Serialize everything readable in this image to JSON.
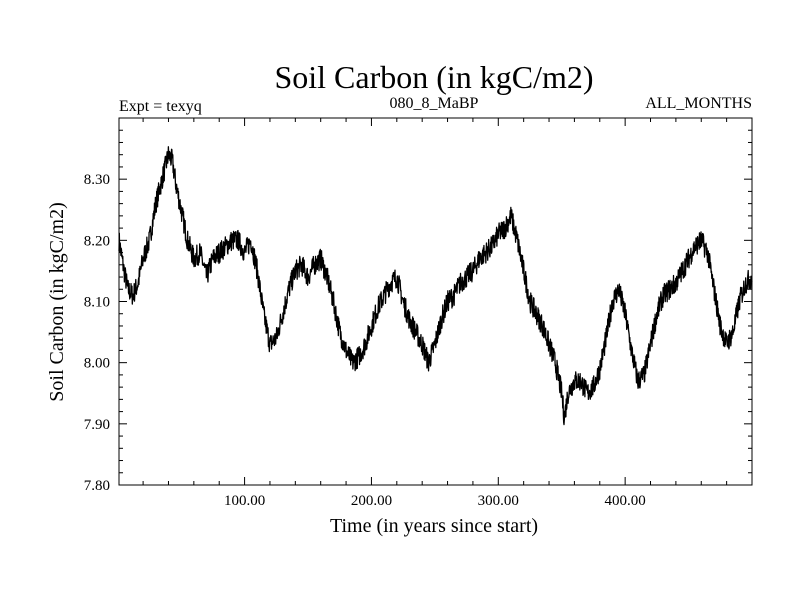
{
  "chart_data": {
    "type": "line",
    "title": "Soil Carbon (in kgC/m2)",
    "subtitle_left": "Expt = texyq",
    "subtitle_center": "080_8_MaBP",
    "subtitle_right": "ALL_MONTHS",
    "xlabel": "Time (in years since start)",
    "ylabel": "Soil Carbon (in kgC/m2)",
    "xlim": [
      1,
      500
    ],
    "ylim": [
      7.8,
      8.4
    ],
    "x_ticks": [
      100,
      200,
      300,
      400
    ],
    "x_tick_labels": [
      "100.00",
      "200.00",
      "300.00",
      "400.00"
    ],
    "y_ticks": [
      7.8,
      7.9,
      8.0,
      8.1,
      8.2,
      8.3
    ],
    "y_tick_labels": [
      "7.80",
      "7.90",
      "8.00",
      "8.10",
      "8.20",
      "8.30"
    ],
    "grid": false,
    "line_color": "#000000",
    "series": [
      {
        "x": [
          1,
          5,
          8,
          12,
          16,
          20,
          25,
          30,
          35,
          40,
          43,
          46,
          50,
          55,
          60,
          65,
          70,
          75,
          80,
          85,
          90,
          95,
          100,
          105,
          110,
          115,
          120,
          125,
          130,
          135,
          140,
          145,
          150,
          155,
          160,
          165,
          170,
          175,
          180,
          185,
          190,
          195,
          200,
          205,
          210,
          215,
          220,
          225,
          230,
          235,
          240,
          245,
          250,
          255,
          260,
          265,
          270,
          275,
          280,
          285,
          290,
          295,
          300,
          305,
          310,
          315,
          320,
          325,
          330,
          335,
          340,
          345,
          350,
          352,
          355,
          360,
          365,
          370,
          375,
          380,
          385,
          390,
          395,
          400,
          405,
          410,
          415,
          420,
          425,
          430,
          435,
          440,
          445,
          450,
          455,
          460,
          465,
          470,
          475,
          480,
          485,
          490,
          495,
          500
        ],
        "y": [
          8.2,
          8.15,
          8.12,
          8.11,
          8.13,
          8.17,
          8.2,
          8.26,
          8.3,
          8.34,
          8.33,
          8.29,
          8.25,
          8.2,
          8.17,
          8.18,
          8.14,
          8.17,
          8.18,
          8.19,
          8.2,
          8.2,
          8.18,
          8.2,
          8.15,
          8.08,
          8.03,
          8.04,
          8.08,
          8.12,
          8.15,
          8.16,
          8.14,
          8.16,
          8.17,
          8.14,
          8.1,
          8.05,
          8.02,
          8.0,
          8.01,
          8.03,
          8.06,
          8.09,
          8.11,
          8.13,
          8.14,
          8.1,
          8.07,
          8.05,
          8.03,
          8.0,
          8.03,
          8.07,
          8.1,
          8.11,
          8.13,
          8.14,
          8.15,
          8.17,
          8.18,
          8.19,
          8.21,
          8.22,
          8.24,
          8.2,
          8.15,
          8.1,
          8.08,
          8.06,
          8.03,
          8.0,
          7.95,
          7.91,
          7.95,
          7.97,
          7.97,
          7.95,
          7.96,
          7.99,
          8.04,
          8.1,
          8.12,
          8.08,
          8.02,
          7.97,
          7.98,
          8.03,
          8.08,
          8.11,
          8.12,
          8.13,
          8.15,
          8.17,
          8.19,
          8.2,
          8.18,
          8.12,
          8.06,
          8.03,
          8.05,
          8.1,
          8.13,
          8.14
        ]
      }
    ]
  }
}
